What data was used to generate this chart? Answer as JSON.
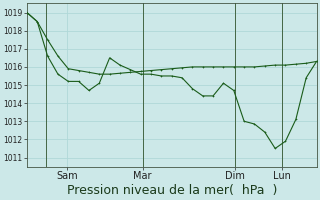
{
  "background_color": "#cce8e8",
  "grid_color": "#b0d8d8",
  "line_color": "#1a5c1a",
  "ylim": [
    1010.5,
    1019.5
  ],
  "yticks": [
    1011,
    1012,
    1013,
    1014,
    1015,
    1016,
    1017,
    1018,
    1019
  ],
  "xlabel": "Pression niveau de la mer(  hPa  )",
  "xlabel_fontsize": 9,
  "xtick_labels": [
    "Sam",
    "Mar",
    "Dim",
    "Lun"
  ],
  "xtick_positions": [
    0.14,
    0.4,
    0.72,
    0.88
  ],
  "vline_positions": [
    0.065,
    0.4,
    0.72,
    0.88
  ],
  "trend_x": [
    0,
    1,
    2,
    3,
    4,
    5,
    6,
    7,
    8,
    9,
    10,
    11,
    12,
    13,
    14,
    15,
    16,
    17,
    18,
    19,
    20,
    21,
    22,
    23,
    24,
    25,
    26,
    27,
    28
  ],
  "trend_y": [
    1019.0,
    1018.5,
    1017.5,
    1016.6,
    1015.9,
    1015.8,
    1015.7,
    1015.6,
    1015.6,
    1015.65,
    1015.7,
    1015.75,
    1015.8,
    1015.85,
    1015.9,
    1015.95,
    1016.0,
    1016.0,
    1016.0,
    1016.0,
    1016.0,
    1016.0,
    1016.0,
    1016.05,
    1016.1,
    1016.1,
    1016.15,
    1016.2,
    1016.3
  ],
  "detail_x": [
    0,
    1,
    2,
    3,
    4,
    5,
    6,
    7,
    8,
    9,
    10,
    11,
    12,
    13,
    14,
    15,
    16,
    17,
    18,
    19,
    20,
    21,
    22,
    23,
    24,
    25,
    26,
    27,
    28
  ],
  "detail_y": [
    1019.0,
    1018.5,
    1016.6,
    1015.6,
    1015.2,
    1015.2,
    1014.7,
    1015.1,
    1016.5,
    1016.1,
    1015.85,
    1015.6,
    1015.6,
    1015.5,
    1015.5,
    1015.4,
    1014.8,
    1014.4,
    1014.4,
    1015.1,
    1014.7,
    1013.0,
    1012.85,
    1012.4,
    1011.5,
    1011.9,
    1013.1,
    1015.4,
    1016.3
  ]
}
